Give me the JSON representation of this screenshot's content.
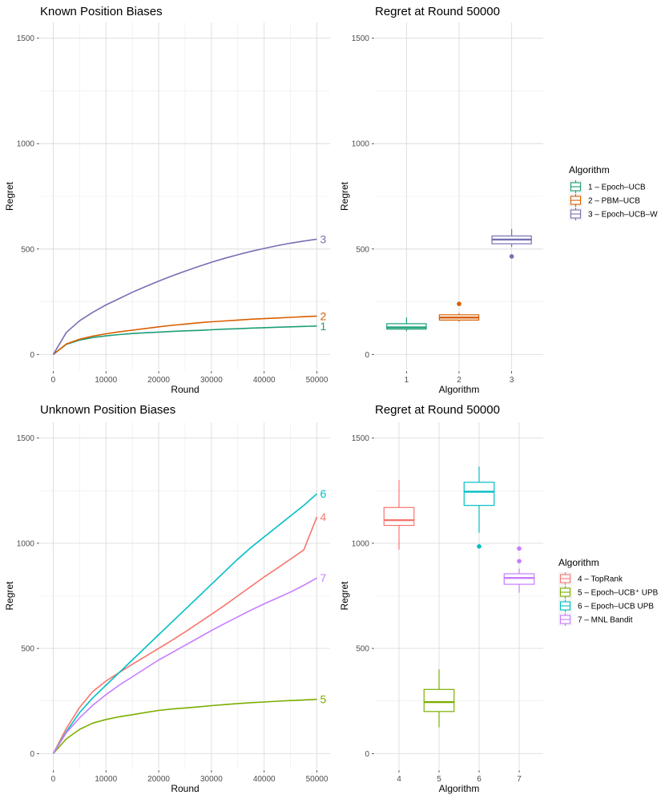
{
  "chart_data": [
    {
      "type": "line",
      "title": "Known Position Biases",
      "xlabel": "Round",
      "ylabel": "Regret",
      "xlim": [
        0,
        50000
      ],
      "ylim": [
        0,
        1500
      ],
      "xticks": [
        0,
        10000,
        20000,
        30000,
        40000,
        50000
      ],
      "yticks": [
        0,
        500,
        1000,
        1500
      ],
      "grid": true,
      "x": [
        0,
        2500,
        5000,
        7500,
        10000,
        12500,
        15000,
        17500,
        20000,
        22500,
        25000,
        27500,
        30000,
        32500,
        35000,
        37500,
        40000,
        42500,
        45000,
        47500,
        50000
      ],
      "series": [
        {
          "name": "1",
          "color": "#1B9E77",
          "values": [
            0,
            48,
            68,
            80,
            88,
            94,
            99,
            103,
            106,
            109,
            112,
            114,
            117,
            120,
            122,
            125,
            127,
            129,
            131,
            133,
            135
          ]
        },
        {
          "name": "2",
          "color": "#D95F02",
          "values": [
            0,
            50,
            72,
            87,
            98,
            107,
            115,
            123,
            131,
            138,
            144,
            150,
            155,
            159,
            163,
            167,
            170,
            173,
            176,
            179,
            182
          ]
        },
        {
          "name": "3",
          "color": "#7570B3",
          "values": [
            0,
            105,
            160,
            200,
            235,
            265,
            295,
            322,
            348,
            372,
            395,
            417,
            437,
            456,
            473,
            489,
            503,
            516,
            528,
            538,
            547
          ]
        }
      ]
    },
    {
      "type": "box",
      "title": "Regret at Round 50000",
      "xlabel": "Algorithm",
      "ylabel": "Regret",
      "categories": [
        "1",
        "2",
        "3"
      ],
      "ylim": [
        0,
        1500
      ],
      "yticks": [
        0,
        500,
        1000,
        1500
      ],
      "grid": true,
      "boxes": [
        {
          "category": "1",
          "color": "#1B9E77",
          "min": 110,
          "q1": 120,
          "median": 128,
          "q3": 146,
          "max": 175,
          "outliers": []
        },
        {
          "category": "2",
          "color": "#D95F02",
          "min": 155,
          "q1": 163,
          "median": 175,
          "q3": 188,
          "max": 196,
          "outliers": [
            240
          ]
        },
        {
          "category": "3",
          "color": "#7570B3",
          "min": 510,
          "q1": 525,
          "median": 545,
          "q3": 562,
          "max": 595,
          "outliers": [
            465
          ]
        }
      ],
      "legend": {
        "title": "Algorithm",
        "position": "right",
        "entries": [
          {
            "label": "1 – Epoch–UCB",
            "color": "#1B9E77"
          },
          {
            "label": "2 – PBM–UCB",
            "color": "#D95F02"
          },
          {
            "label": "3 – Epoch–UCB–W",
            "color": "#7570B3"
          }
        ]
      }
    },
    {
      "type": "line",
      "title": "Unknown Position Biases",
      "xlabel": "Round",
      "ylabel": "Regret",
      "xlim": [
        0,
        50000
      ],
      "ylim": [
        0,
        1500
      ],
      "xticks": [
        0,
        10000,
        20000,
        30000,
        40000,
        50000
      ],
      "yticks": [
        0,
        500,
        1000,
        1500
      ],
      "grid": true,
      "x": [
        0,
        2500,
        5000,
        7500,
        10000,
        12500,
        15000,
        17500,
        20000,
        22500,
        25000,
        27500,
        30000,
        32500,
        35000,
        37500,
        40000,
        42500,
        45000,
        47500,
        50000
      ],
      "series": [
        {
          "name": "4",
          "color": "#F8766D",
          "values": [
            0,
            120,
            220,
            295,
            345,
            385,
            425,
            462,
            500,
            538,
            578,
            620,
            662,
            705,
            750,
            795,
            840,
            882,
            925,
            968,
            1125
          ]
        },
        {
          "name": "5",
          "color": "#7CAE00",
          "values": [
            0,
            70,
            115,
            145,
            162,
            175,
            185,
            195,
            205,
            212,
            217,
            222,
            228,
            233,
            238,
            242,
            245,
            249,
            252,
            255,
            258
          ]
        },
        {
          "name": "6",
          "color": "#00BFC4",
          "values": [
            0,
            105,
            195,
            265,
            325,
            385,
            445,
            505,
            565,
            625,
            685,
            745,
            805,
            865,
            925,
            980,
            1030,
            1080,
            1130,
            1180,
            1235
          ]
        },
        {
          "name": "7",
          "color": "#C77CFF",
          "values": [
            0,
            100,
            170,
            230,
            280,
            325,
            365,
            405,
            445,
            480,
            515,
            550,
            585,
            618,
            650,
            682,
            712,
            740,
            768,
            800,
            835
          ]
        }
      ]
    },
    {
      "type": "box",
      "title": "Regret at Round 50000",
      "xlabel": "Algorithm",
      "ylabel": "Regret",
      "categories": [
        "4",
        "5",
        "6",
        "7"
      ],
      "ylim": [
        0,
        1500
      ],
      "yticks": [
        0,
        500,
        1000,
        1500
      ],
      "grid": true,
      "boxes": [
        {
          "category": "4",
          "color": "#F8766D",
          "min": 970,
          "q1": 1085,
          "median": 1110,
          "q3": 1170,
          "max": 1300,
          "outliers": []
        },
        {
          "category": "5",
          "color": "#7CAE00",
          "min": 125,
          "q1": 200,
          "median": 245,
          "q3": 305,
          "max": 400,
          "outliers": []
        },
        {
          "category": "6",
          "color": "#00BFC4",
          "min": 1050,
          "q1": 1180,
          "median": 1245,
          "q3": 1290,
          "max": 1365,
          "outliers": [
            985
          ]
        },
        {
          "category": "7",
          "color": "#C77CFF",
          "min": 765,
          "q1": 805,
          "median": 835,
          "q3": 855,
          "max": 880,
          "outliers": [
            915,
            975
          ]
        }
      ],
      "legend": {
        "title": "Algorithm",
        "position": "right",
        "entries": [
          {
            "label": "4 – TopRank",
            "color": "#F8766D"
          },
          {
            "label": "5 – Epoch–UCB⁺ UPB",
            "color": "#7CAE00"
          },
          {
            "label": "6 – Epoch–UCB UPB",
            "color": "#00BFC4"
          },
          {
            "label": "7 – MNL Bandit",
            "color": "#C77CFF"
          }
        ]
      }
    }
  ]
}
